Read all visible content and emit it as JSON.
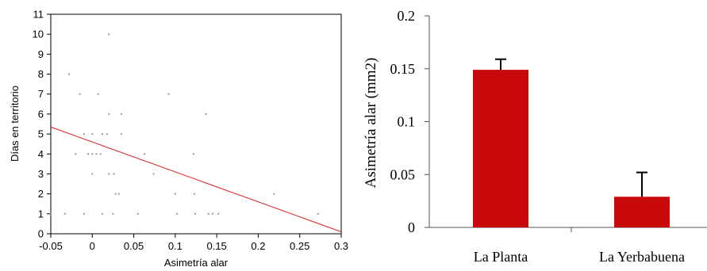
{
  "chart_data": [
    {
      "type": "scatter",
      "xlabel": "Asimetría alar",
      "ylabel": "Días en territorio",
      "xlim": [
        -0.05,
        0.3
      ],
      "ylim": [
        0,
        11
      ],
      "x_ticks": [
        "-0.05",
        "0",
        "0.05",
        "0.1",
        "0.15",
        "0.2",
        "0.25",
        "0.3"
      ],
      "y_ticks": [
        "0",
        "1",
        "2",
        "3",
        "4",
        "5",
        "6",
        "7",
        "8",
        "9",
        "10",
        "11"
      ],
      "points": [
        {
          "x": -0.028,
          "y": 8
        },
        {
          "x": -0.015,
          "y": 7
        },
        {
          "x": 0.007,
          "y": 7
        },
        {
          "x": 0.02,
          "y": 10
        },
        {
          "x": 0.092,
          "y": 7
        },
        {
          "x": 0.02,
          "y": 6
        },
        {
          "x": 0.035,
          "y": 6
        },
        {
          "x": 0.137,
          "y": 6
        },
        {
          "x": -0.01,
          "y": 5
        },
        {
          "x": 0.0,
          "y": 5
        },
        {
          "x": 0.012,
          "y": 5
        },
        {
          "x": 0.018,
          "y": 5
        },
        {
          "x": 0.035,
          "y": 5
        },
        {
          "x": -0.02,
          "y": 4
        },
        {
          "x": -0.005,
          "y": 4
        },
        {
          "x": 0.0,
          "y": 4
        },
        {
          "x": 0.005,
          "y": 4
        },
        {
          "x": 0.01,
          "y": 4
        },
        {
          "x": 0.063,
          "y": 4
        },
        {
          "x": 0.122,
          "y": 4
        },
        {
          "x": 0.0,
          "y": 3
        },
        {
          "x": 0.02,
          "y": 3
        },
        {
          "x": 0.026,
          "y": 3
        },
        {
          "x": 0.074,
          "y": 3
        },
        {
          "x": 0.028,
          "y": 2
        },
        {
          "x": 0.032,
          "y": 2
        },
        {
          "x": 0.1,
          "y": 2
        },
        {
          "x": 0.123,
          "y": 2
        },
        {
          "x": 0.219,
          "y": 2
        },
        {
          "x": -0.05,
          "y": 1
        },
        {
          "x": -0.033,
          "y": 1
        },
        {
          "x": -0.01,
          "y": 1
        },
        {
          "x": 0.012,
          "y": 1
        },
        {
          "x": 0.025,
          "y": 1
        },
        {
          "x": 0.055,
          "y": 1
        },
        {
          "x": 0.102,
          "y": 1
        },
        {
          "x": 0.124,
          "y": 1
        },
        {
          "x": 0.14,
          "y": 1
        },
        {
          "x": 0.145,
          "y": 1
        },
        {
          "x": 0.152,
          "y": 1
        },
        {
          "x": 0.272,
          "y": 1
        }
      ],
      "regression_line": {
        "x": [
          -0.05,
          0.3
        ],
        "y": [
          5.35,
          0.1
        ],
        "color": "#d9201f"
      },
      "point_color": "#9a9a9a",
      "grid": false
    },
    {
      "type": "bar",
      "xlabel": "",
      "ylabel": "Asimetría alar (mm2)",
      "categories": [
        "La Planta",
        "La Yerbabuena"
      ],
      "values": [
        0.149,
        0.029
      ],
      "error_upper": [
        0.159,
        0.052
      ],
      "ylim": [
        0,
        0.2
      ],
      "y_ticks": [
        "0",
        "0.05",
        "0.1",
        "0.15",
        "0.2"
      ],
      "bar_color": "#c8090c",
      "grid": false
    }
  ]
}
